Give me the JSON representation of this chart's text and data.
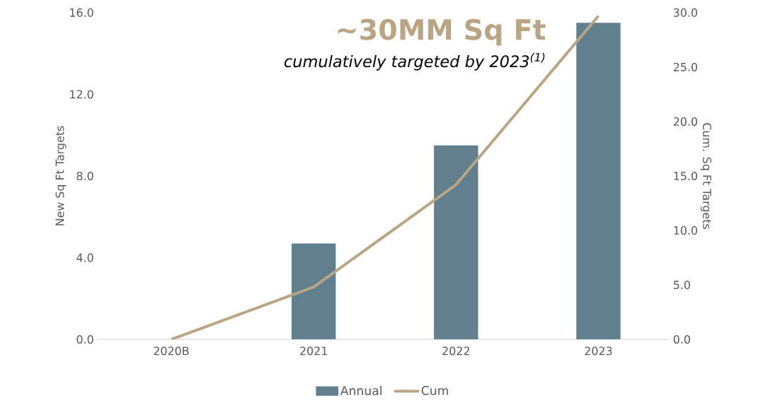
{
  "chart_data": {
    "type": "bar",
    "title": "~30MM Sq Ft",
    "subtitle": "cumulatively targeted by 2023$^{(1)}$",
    "ylabel": "New Sq Ft Targets",
    "y2label": "Cum. Sq Ft Targets",
    "categories": [
      "2020B",
      "2021",
      "2022",
      "2023"
    ],
    "series": [
      {
        "name": "Annual",
        "color": "#607f8f",
        "values": [
          0,
          4.7,
          9.5,
          15.5
        ]
      },
      {
        "name": "Cum",
        "type": "line",
        "axis": "y2",
        "color": "#b9a583",
        "values": [
          0,
          4.8,
          14.2,
          29.7
        ]
      }
    ],
    "ylim": [
      0,
      16
    ],
    "yticks": [
      {
        "value": 0,
        "label": "0.0"
      },
      {
        "value": 4,
        "label": "4.0"
      },
      {
        "value": 8,
        "label": "8.0"
      },
      {
        "value": 12,
        "label": "12.0"
      },
      {
        "value": 16,
        "label": "16.0"
      }
    ],
    "y2lim": [
      0,
      30
    ],
    "y2ticks": [
      {
        "value": 0,
        "label": "0.0"
      },
      {
        "value": 5,
        "label": "5.0"
      },
      {
        "value": 10,
        "label": "10.0"
      },
      {
        "value": 15,
        "label": "15.0"
      },
      {
        "value": 20,
        "label": "20.0"
      },
      {
        "value": 25,
        "label": "25.0"
      },
      {
        "value": 30,
        "label": "30.0"
      }
    ],
    "legend": "bottom"
  }
}
